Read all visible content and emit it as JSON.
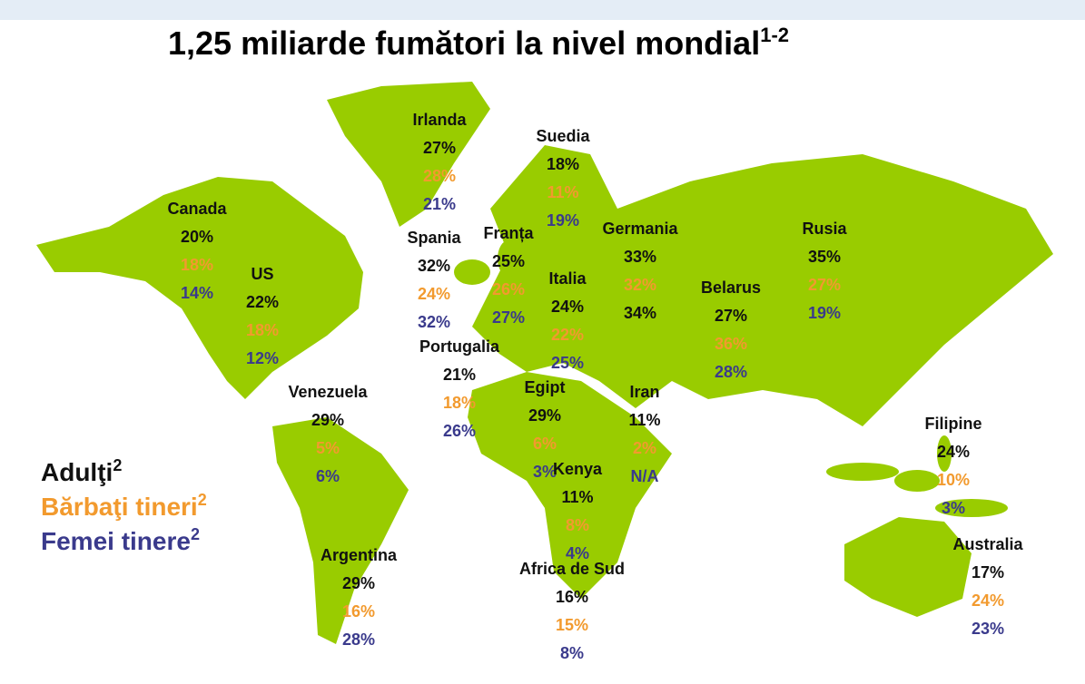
{
  "header": {
    "title": "1,25 miliarde fumători  la nivel mondial",
    "title_sup": "1-2"
  },
  "legend": [
    {
      "label": "Adulţi",
      "sup": "2"
    },
    {
      "label": "Bărbaţi tineri",
      "sup": "2"
    },
    {
      "label": "Femei tinere",
      "sup": "2"
    }
  ],
  "countries": [
    {
      "name": "Irlanda",
      "values": [
        "27%",
        "28%",
        "21%"
      ]
    },
    {
      "name": "Suedia",
      "values": [
        "18%",
        "11%",
        "19%"
      ]
    },
    {
      "name": "Canada",
      "values": [
        "20%",
        "18%",
        "14%"
      ]
    },
    {
      "name": "US",
      "values": [
        "22%",
        "18%",
        "12%"
      ]
    },
    {
      "name": "Spania",
      "values": [
        "32%",
        "24%",
        "32%"
      ]
    },
    {
      "name": "Franța",
      "values": [
        "25%",
        "26%",
        "27%"
      ]
    },
    {
      "name": "Germania",
      "values": [
        "33%",
        "32%",
        "34%"
      ]
    },
    {
      "name": "Italia",
      "values": [
        "24%",
        "22%",
        "25%"
      ]
    },
    {
      "name": "Rusia",
      "values": [
        "35%",
        "27%",
        "19%"
      ]
    },
    {
      "name": "Belarus",
      "values": [
        "27%",
        "36%",
        "28%"
      ]
    },
    {
      "name": "Portugalia",
      "values": [
        "21%",
        "18%",
        "26%"
      ]
    },
    {
      "name": "Venezuela",
      "values": [
        "29%",
        "5%",
        "6%"
      ]
    },
    {
      "name": "Egipt",
      "values": [
        "29%",
        "6%",
        "3%"
      ]
    },
    {
      "name": "Iran",
      "values": [
        "11%",
        "2%",
        "N/A"
      ]
    },
    {
      "name": "Kenya",
      "values": [
        "11%",
        "8%",
        "4%"
      ]
    },
    {
      "name": "Filipine",
      "values": [
        "24%",
        "10%",
        "3%"
      ]
    },
    {
      "name": "Argentina",
      "values": [
        "29%",
        "16%",
        "28%"
      ]
    },
    {
      "name": "Africa de Sud",
      "values": [
        "16%",
        "15%",
        "8%"
      ]
    },
    {
      "name": "Australia",
      "values": [
        "17%",
        "24%",
        "23%"
      ]
    }
  ]
}
